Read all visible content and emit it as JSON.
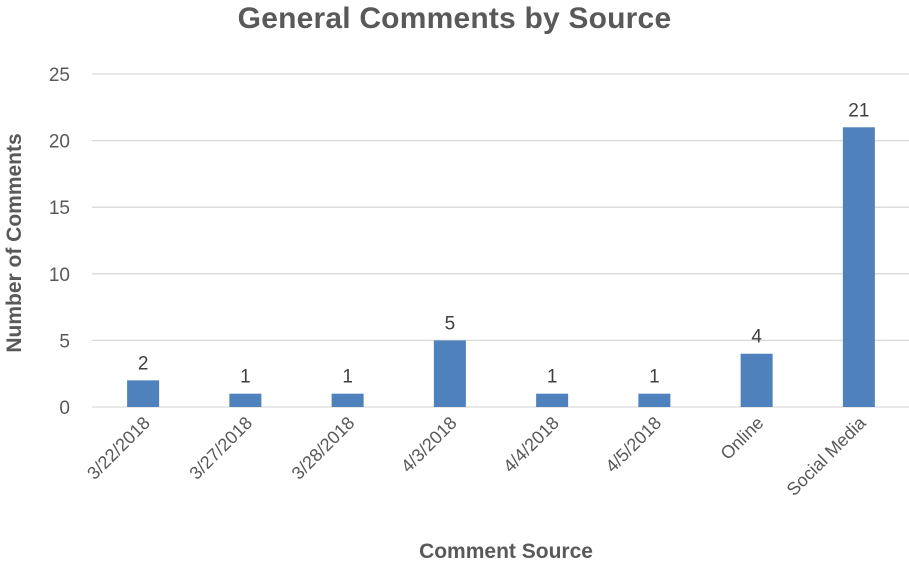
{
  "chart_data": {
    "type": "bar",
    "title": "General Comments by Source",
    "xlabel": "Comment Source",
    "ylabel": "Number of Comments",
    "categories": [
      "3/22/2018",
      "3/27/2018",
      "3/28/2018",
      "4/3/2018",
      "4/4/2018",
      "4/5/2018",
      "Online",
      "Social Media"
    ],
    "values": [
      2,
      1,
      1,
      5,
      1,
      1,
      4,
      21
    ],
    "ylim": [
      0,
      25
    ],
    "yticks": [
      "0",
      "5",
      "10",
      "15",
      "20",
      "25"
    ],
    "data_labels": [
      "2",
      "1",
      "1",
      "5",
      "1",
      "1",
      "4",
      "21"
    ],
    "grid": true,
    "legend": "none",
    "colors": {
      "bar": "#4F81BD",
      "grid": "#D9D9D9",
      "text": "#595959"
    }
  }
}
